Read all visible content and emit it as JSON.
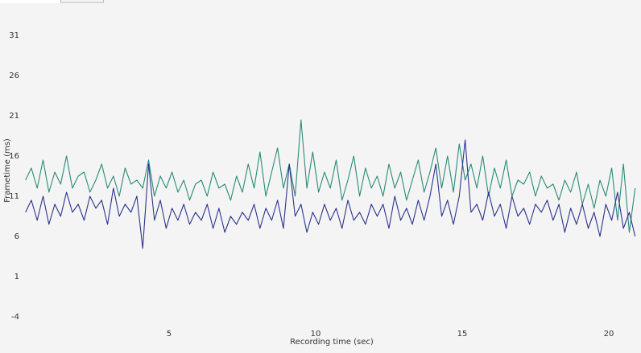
{
  "chart_data": {
    "type": "line",
    "x_label": "Recording time (sec)",
    "y_label": "Frametime (ms)",
    "x": [
      0.1,
      0.3,
      0.5,
      0.7,
      0.9,
      1.1,
      1.3,
      1.5,
      1.7,
      1.9,
      2.1,
      2.3,
      2.5,
      2.7,
      2.9,
      3.1,
      3.3,
      3.5,
      3.7,
      3.9,
      4.1,
      4.3,
      4.5,
      4.7,
      4.9,
      5.1,
      5.3,
      5.5,
      5.7,
      5.9,
      6.1,
      6.3,
      6.5,
      6.7,
      6.9,
      7.1,
      7.3,
      7.5,
      7.7,
      7.9,
      8.1,
      8.3,
      8.5,
      8.7,
      8.9,
      9.1,
      9.3,
      9.5,
      9.7,
      9.9,
      10.1,
      10.3,
      10.5,
      10.7,
      10.9,
      11.1,
      11.3,
      11.5,
      11.7,
      11.9,
      12.1,
      12.3,
      12.5,
      12.7,
      12.9,
      13.1,
      13.3,
      13.5,
      13.7,
      13.9,
      14.1,
      14.3,
      14.5,
      14.7,
      14.9,
      15.1,
      15.3,
      15.5,
      15.7,
      15.9,
      16.1,
      16.3,
      16.5,
      16.7,
      16.9,
      17.1,
      17.3,
      17.5,
      17.7,
      17.9,
      18.1,
      18.3,
      18.5,
      18.7,
      18.9,
      19.1,
      19.3,
      19.5,
      19.7,
      19.9,
      20.1,
      20.3,
      20.5,
      20.7,
      20.9
    ],
    "series": [
      {
        "color": "#2a8c78",
        "values": [
          13,
          14.5,
          12,
          15.5,
          11.5,
          14,
          12.5,
          16,
          12,
          13.5,
          14,
          11.5,
          13,
          15,
          12,
          13.5,
          11,
          14.5,
          12.5,
          13,
          12,
          15.5,
          11,
          13.5,
          12,
          14,
          11.5,
          13,
          10.5,
          12.5,
          13,
          11,
          14,
          12,
          12.5,
          10.5,
          13.5,
          11.5,
          15,
          12,
          16.5,
          11,
          14,
          17,
          12,
          15,
          11,
          20.5,
          12,
          16.5,
          11.5,
          14,
          12,
          15.5,
          10.5,
          13,
          16,
          11,
          14.5,
          12,
          13.5,
          11,
          15,
          12,
          14,
          10.5,
          13,
          15.5,
          11.5,
          14,
          17,
          12,
          16,
          11.5,
          17.5,
          13,
          15,
          12,
          16,
          11,
          14.5,
          12,
          15.5,
          11,
          13,
          12.5,
          14,
          11,
          13.5,
          12,
          12.5,
          10.5,
          13,
          11.5,
          14,
          10,
          12.5,
          9.5,
          13,
          11,
          14.5,
          8,
          15,
          6.5,
          12
        ]
      },
      {
        "color": "#2b348c",
        "values": [
          9,
          10.5,
          8,
          11,
          7.5,
          10,
          8.5,
          11.5,
          9,
          10,
          8,
          11,
          9.5,
          10.5,
          7.5,
          12,
          8.5,
          10,
          9,
          11,
          4.5,
          15,
          8,
          10.5,
          7,
          9.5,
          8,
          10,
          7.5,
          9,
          8,
          10,
          7,
          9.5,
          6.5,
          8.5,
          7.5,
          9,
          8,
          10,
          7,
          9.5,
          8,
          10.5,
          7,
          15,
          8.5,
          10,
          6.5,
          9,
          7.5,
          10,
          8,
          9.5,
          7,
          10.5,
          8,
          9,
          7.5,
          10,
          8.5,
          10,
          7,
          11,
          8,
          9.5,
          7.5,
          10.5,
          8,
          11,
          15,
          8.5,
          10.5,
          7.5,
          11,
          18,
          9,
          10,
          8,
          11.5,
          8.5,
          10,
          7,
          11,
          8.5,
          9.5,
          7.5,
          10,
          9,
          10.5,
          8,
          10,
          6.5,
          9.5,
          7.5,
          10,
          7,
          9,
          6,
          10,
          8,
          11.5,
          7,
          9,
          6
        ]
      }
    ],
    "xlim": [
      0,
      21.1
    ],
    "ylim": [
      -5.6,
      35.4
    ],
    "xticks": [
      5,
      10,
      15,
      20
    ],
    "yticks": [
      -4,
      1,
      6,
      11,
      16,
      21,
      26,
      31
    ]
  }
}
